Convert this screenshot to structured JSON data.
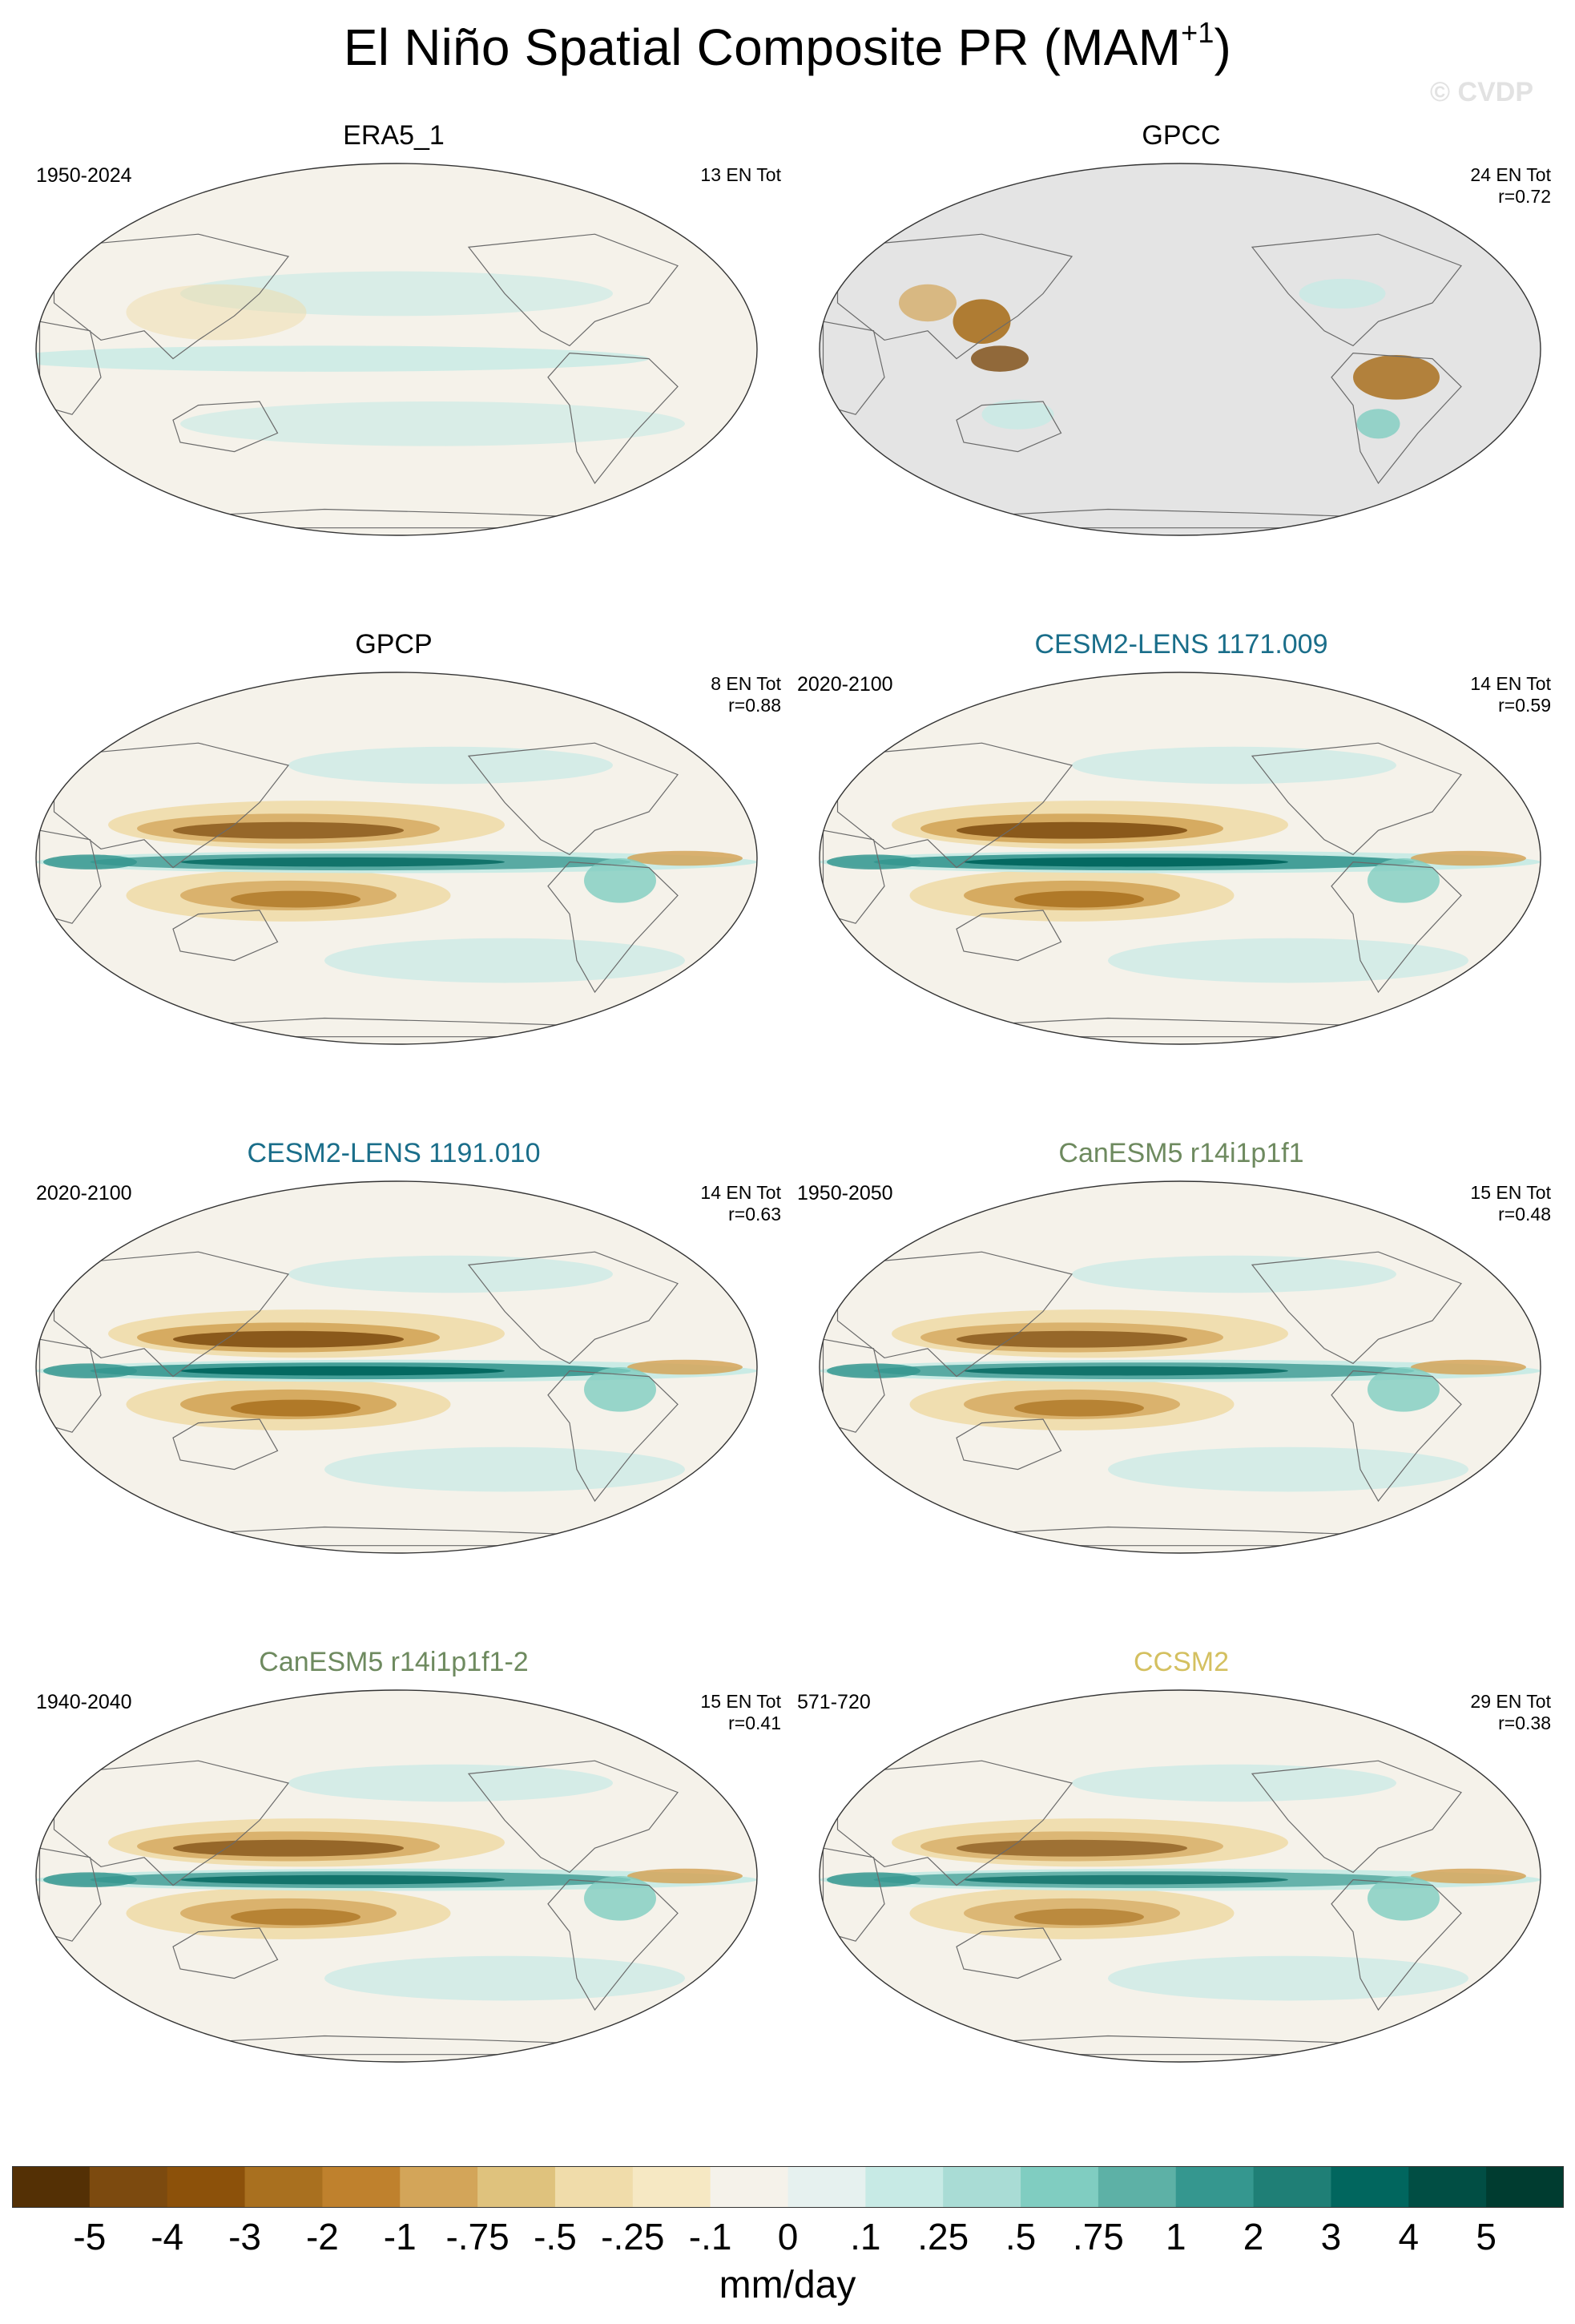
{
  "title": "El Niño Spatial Composite PR (MAM",
  "title_sup": "+1",
  "title_close": ")",
  "watermark": "© CVDP",
  "units": "mm/day",
  "colors": {
    "land_line": "#6a6a6a",
    "missing": "#e4e4e4",
    "colorbar": [
      "#543005",
      "#7c4a0f",
      "#8c510a",
      "#a9701f",
      "#bf812d",
      "#d3a559",
      "#dfc27d",
      "#f0dcaa",
      "#f6e8c3",
      "#f5f2ea",
      "#e6f1ef",
      "#c7eae5",
      "#a9dcd5",
      "#80cdc1",
      "#5db1a6",
      "#35978f",
      "#1f7f76",
      "#01665e",
      "#014e44",
      "#003c30"
    ]
  },
  "chart_data": {
    "type": "heatmap",
    "title": "El Niño Spatial Composite PR (MAM+1)",
    "projection": "Robinson (Pacific-centered)",
    "units": "mm/day",
    "colorbar_ticks": [
      "-5",
      "-4",
      "-3",
      "-2",
      "-1",
      "-.75",
      "-.5",
      "-.25",
      "-.1",
      "0",
      ".1",
      ".25",
      ".5",
      ".75",
      "1",
      "2",
      "3",
      "4",
      "5"
    ],
    "panels": [
      {
        "name": "ERA5_1",
        "period": "1950-2024",
        "en_tot": "13 EN Tot",
        "r": "",
        "title_color": "#000000",
        "pattern": "weak",
        "missing_ocean": false
      },
      {
        "name": "GPCC",
        "period": "",
        "en_tot": "24 EN Tot",
        "r": "r=0.72",
        "title_color": "#000000",
        "pattern": "land_only",
        "missing_ocean": true
      },
      {
        "name": "GPCP",
        "period": "",
        "en_tot": "8 EN Tot",
        "r": "r=0.88",
        "title_color": "#000000",
        "pattern": "enso",
        "missing_ocean": false
      },
      {
        "name": "CESM2-LENS 1171.009",
        "period": "2020-2100",
        "en_tot": "14 EN Tot",
        "r": "r=0.59",
        "title_color": "#1a6e8a",
        "pattern": "enso_strong",
        "missing_ocean": false
      },
      {
        "name": "CESM2-LENS 1191.010",
        "period": "2020-2100",
        "en_tot": "14 EN Tot",
        "r": "r=0.63",
        "title_color": "#1a6e8a",
        "pattern": "enso_strong",
        "missing_ocean": false
      },
      {
        "name": "CanESM5 r14i1p1f1",
        "period": "1950-2050",
        "en_tot": "15 EN Tot",
        "r": "r=0.48",
        "title_color": "#6e8a5f",
        "pattern": "enso",
        "missing_ocean": false
      },
      {
        "name": "CanESM5 r14i1p1f1-2",
        "period": "1940-2040",
        "en_tot": "15 EN Tot",
        "r": "r=0.41",
        "title_color": "#6e8a5f",
        "pattern": "enso",
        "missing_ocean": false
      },
      {
        "name": "CCSM2",
        "period": "571-720",
        "en_tot": "29 EN Tot",
        "r": "r=0.38",
        "title_color": "#d4c060",
        "pattern": "enso_mid",
        "missing_ocean": false
      }
    ]
  }
}
